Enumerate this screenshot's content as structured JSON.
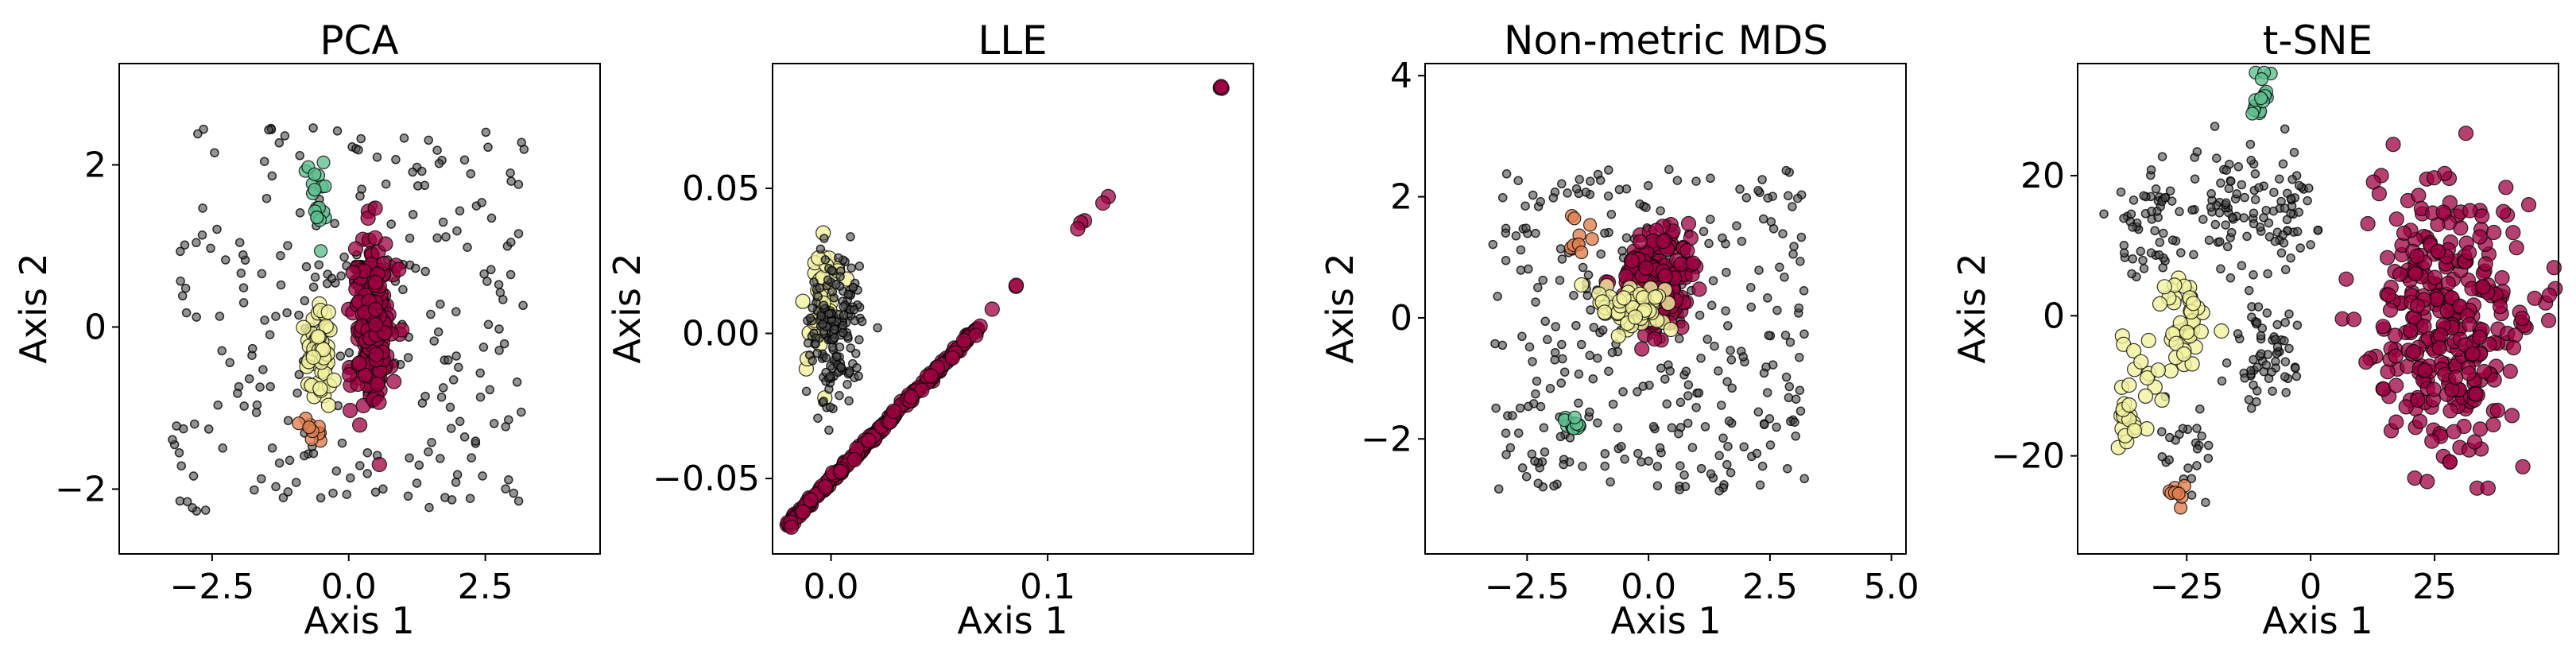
{
  "colors": {
    "noise": "#4d4d4d",
    "crimson": "#9e0142",
    "pale_yellow": "#f2f2a0",
    "orange": "#e08050",
    "green": "#5fbf8f",
    "edge": "#000000"
  },
  "chart_data": [
    {
      "type": "scatter",
      "title": "PCA",
      "xlabel": "Axis 1",
      "ylabel": "Axis 2",
      "xlim": [
        -4.2,
        4.6
      ],
      "ylim": [
        -2.8,
        3.25
      ],
      "xticks": [
        -2.5,
        0.0,
        2.5
      ],
      "xtick_labels": [
        "−2.5",
        "0.0",
        "2.5"
      ],
      "yticks": [
        -2,
        0,
        2
      ],
      "ytick_labels": [
        "−2",
        "0",
        "2"
      ],
      "clusters": [
        {
          "name": "background",
          "color": "noise",
          "kind": "spread",
          "cx": 0.0,
          "cy": 0.1,
          "sx": 1.9,
          "sy": 1.25,
          "n": 260,
          "seed": 11
        },
        {
          "name": "crimson",
          "color": "crimson",
          "kind": "blob",
          "cx": 0.45,
          "cy": 0.0,
          "sx": 0.17,
          "sy": 0.55,
          "n": 230,
          "seed": 12
        },
        {
          "name": "pale-yellow",
          "color": "pale_yellow",
          "kind": "blob",
          "cx": -0.55,
          "cy": -0.3,
          "sx": 0.12,
          "sy": 0.28,
          "n": 60,
          "seed": 13
        },
        {
          "name": "green",
          "color": "green",
          "kind": "blob",
          "cx": -0.5,
          "cy": 1.65,
          "sx": 0.1,
          "sy": 0.22,
          "n": 20,
          "seed": 14
        },
        {
          "name": "orange",
          "color": "orange",
          "kind": "blob",
          "cx": -0.6,
          "cy": -1.25,
          "sx": 0.1,
          "sy": 0.12,
          "n": 10,
          "seed": 15
        }
      ]
    },
    {
      "type": "scatter",
      "title": "LLE",
      "xlabel": "Axis 1",
      "ylabel": "Axis 2",
      "xlim": [
        -0.027,
        0.195
      ],
      "ylim": [
        -0.076,
        0.093
      ],
      "xticks": [
        0.0,
        0.1
      ],
      "xtick_labels": [
        "0.0",
        "0.1"
      ],
      "yticks": [
        -0.05,
        0.0,
        0.05
      ],
      "ytick_labels": [
        "−0.05",
        "0.00",
        "0.05"
      ],
      "clusters": [
        {
          "name": "crimson-line",
          "color": "crimson",
          "kind": "line",
          "x0": -0.02,
          "y0": -0.066,
          "x1": 0.068,
          "y1": 0.002,
          "n": 260,
          "seed": 21
        },
        {
          "name": "crimson-outliers",
          "color": "crimson",
          "kind": "line",
          "x0": 0.07,
          "y0": 0.005,
          "x1": 0.13,
          "y1": 0.048,
          "n": 8,
          "seed": 22
        },
        {
          "name": "crimson-corner",
          "color": "crimson",
          "kind": "blob",
          "cx": 0.18,
          "cy": 0.085,
          "sx": 0.0003,
          "sy": 0.0003,
          "n": 4,
          "seed": 23
        },
        {
          "name": "pale-yellow",
          "color": "pale_yellow",
          "kind": "blob",
          "cx": -0.005,
          "cy": 0.008,
          "sx": 0.004,
          "sy": 0.013,
          "n": 40,
          "seed": 24
        },
        {
          "name": "background",
          "color": "noise",
          "kind": "blob",
          "cx": 0.002,
          "cy": 0.0,
          "sx": 0.006,
          "sy": 0.012,
          "n": 170,
          "seed": 25
        }
      ]
    },
    {
      "type": "scatter",
      "title": "Non-metric MDS",
      "xlabel": "Axis 1",
      "ylabel": "Axis 2",
      "xlim": [
        -4.6,
        5.3
      ],
      "ylim": [
        -3.9,
        4.2
      ],
      "xticks": [
        -2.5,
        0.0,
        2.5,
        5.0
      ],
      "xtick_labels": [
        "−2.5",
        "0.0",
        "2.5",
        "5.0"
      ],
      "yticks": [
        -2,
        0,
        2,
        4
      ],
      "ytick_labels": [
        "−2",
        "0",
        "2",
        "4"
      ],
      "clusters": [
        {
          "name": "background",
          "color": "noise",
          "kind": "spread",
          "cx": 0.0,
          "cy": -0.2,
          "sx": 1.9,
          "sy": 1.4,
          "n": 320,
          "seed": 31
        },
        {
          "name": "crimson",
          "color": "crimson",
          "kind": "blob",
          "cx": 0.1,
          "cy": 0.6,
          "sx": 0.35,
          "sy": 0.4,
          "n": 240,
          "seed": 32
        },
        {
          "name": "pale-yellow",
          "color": "pale_yellow",
          "kind": "blob",
          "cx": -0.35,
          "cy": 0.15,
          "sx": 0.35,
          "sy": 0.2,
          "n": 55,
          "seed": 33
        },
        {
          "name": "orange",
          "color": "orange",
          "kind": "blob",
          "cx": -1.45,
          "cy": 1.3,
          "sx": 0.12,
          "sy": 0.2,
          "n": 10,
          "seed": 34
        },
        {
          "name": "green",
          "color": "green",
          "kind": "blob",
          "cx": -1.55,
          "cy": -1.75,
          "sx": 0.1,
          "sy": 0.15,
          "n": 14,
          "seed": 35
        }
      ]
    },
    {
      "type": "scatter",
      "title": "t-SNE",
      "xlabel": "Axis 1",
      "ylabel": "Axis 2",
      "xlim": [
        -47,
        50
      ],
      "ylim": [
        -34,
        36
      ],
      "xticks": [
        -25,
        0,
        25
      ],
      "xtick_labels": [
        "−25",
        "0",
        "25"
      ],
      "yticks": [
        -20,
        0,
        20
      ],
      "ytick_labels": [
        "−20",
        "0",
        "20"
      ],
      "clusters": [
        {
          "name": "bg-top-left",
          "color": "noise",
          "kind": "blob",
          "cx": -30,
          "cy": 13,
          "sx": 5,
          "sy": 4,
          "n": 60,
          "seed": 41
        },
        {
          "name": "bg-top-mid",
          "color": "noise",
          "kind": "blob",
          "cx": -17,
          "cy": 17,
          "sx": 4,
          "sy": 5,
          "n": 55,
          "seed": 42
        },
        {
          "name": "bg-top-right",
          "color": "noise",
          "kind": "blob",
          "cx": -6,
          "cy": 15,
          "sx": 3.5,
          "sy": 5,
          "n": 50,
          "seed": 43
        },
        {
          "name": "bg-center",
          "color": "noise",
          "kind": "blob",
          "cx": -9,
          "cy": -6,
          "sx": 3.5,
          "sy": 5,
          "n": 60,
          "seed": 44
        },
        {
          "name": "bg-bottom",
          "color": "noise",
          "kind": "blob",
          "cx": -26,
          "cy": -19,
          "sx": 3,
          "sy": 4,
          "n": 25,
          "seed": 45
        },
        {
          "name": "crimson",
          "color": "crimson",
          "kind": "blob",
          "cx": 28,
          "cy": 0,
          "sx": 8.5,
          "sy": 10,
          "n": 320,
          "seed": 46
        },
        {
          "name": "pale-yellow-a",
          "color": "pale_yellow",
          "kind": "blob",
          "cx": -26,
          "cy": -1,
          "sx": 2.5,
          "sy": 3.5,
          "n": 40,
          "seed": 47
        },
        {
          "name": "pale-yellow-b",
          "color": "pale_yellow",
          "kind": "blob",
          "cx": -36,
          "cy": -11,
          "sx": 2,
          "sy": 4,
          "n": 30,
          "seed": 48
        },
        {
          "name": "green",
          "color": "green",
          "kind": "blob",
          "cx": -10,
          "cy": 31,
          "sx": 1.2,
          "sy": 1.5,
          "n": 16,
          "seed": 49
        },
        {
          "name": "orange",
          "color": "orange",
          "kind": "blob",
          "cx": -27,
          "cy": -25.5,
          "sx": 1.2,
          "sy": 0.8,
          "n": 8,
          "seed": 50
        }
      ]
    }
  ]
}
